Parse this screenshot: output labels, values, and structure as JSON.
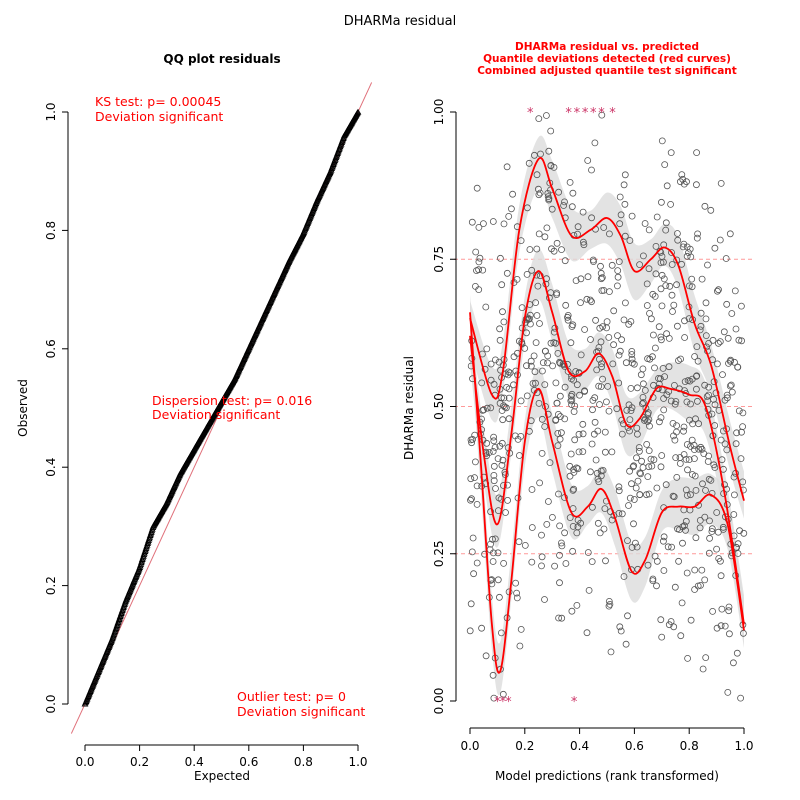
{
  "title": "DHARMa residual",
  "left_panel": {
    "title": "QQ plot residuals",
    "xlabel": "Expected",
    "ylabel": "Observed",
    "ks_test": "KS test: p= 0.00045",
    "ks_deviation": "Deviation  significant",
    "dispersion_test": "Dispersion test: p= 0.016",
    "dispersion_deviation": "Deviation  significant",
    "outlier_test": "Outlier test: p= 0",
    "outlier_deviation": "Deviation  significant"
  },
  "right_panel": {
    "title_line1": "DHARMa residual vs. predicted",
    "title_line2": "Quantile deviations detected (red curves)",
    "title_line3": "Combined adjusted quantile test significant",
    "xlabel": "Model predictions (rank transformed)",
    "ylabel": "DHARMa residual"
  },
  "colors": {
    "accent": "#ff0000",
    "points": "#555555",
    "band": "#dcdcdc",
    "refline": "#ff9999"
  },
  "chart_data": [
    {
      "type": "scatter",
      "title": "QQ plot residuals",
      "xlabel": "Expected",
      "ylabel": "Observed",
      "xlim": [
        0,
        1
      ],
      "ylim": [
        0,
        1
      ],
      "x_ticks": [
        "0.0",
        "0.2",
        "0.4",
        "0.6",
        "0.8",
        "1.0"
      ],
      "y_ticks": [
        "0.0",
        "0.2",
        "0.4",
        "0.6",
        "0.8",
        "1.0"
      ],
      "qq_curve": [
        {
          "x": 0.0,
          "y": 0.0
        },
        {
          "x": 0.05,
          "y": 0.055
        },
        {
          "x": 0.1,
          "y": 0.11
        },
        {
          "x": 0.15,
          "y": 0.175
        },
        {
          "x": 0.2,
          "y": 0.23
        },
        {
          "x": 0.25,
          "y": 0.3
        },
        {
          "x": 0.3,
          "y": 0.34
        },
        {
          "x": 0.35,
          "y": 0.39
        },
        {
          "x": 0.4,
          "y": 0.43
        },
        {
          "x": 0.45,
          "y": 0.47
        },
        {
          "x": 0.5,
          "y": 0.51
        },
        {
          "x": 0.55,
          "y": 0.55
        },
        {
          "x": 0.6,
          "y": 0.6
        },
        {
          "x": 0.65,
          "y": 0.65
        },
        {
          "x": 0.7,
          "y": 0.7
        },
        {
          "x": 0.75,
          "y": 0.75
        },
        {
          "x": 0.8,
          "y": 0.795
        },
        {
          "x": 0.85,
          "y": 0.85
        },
        {
          "x": 0.9,
          "y": 0.9
        },
        {
          "x": 0.95,
          "y": 0.96
        },
        {
          "x": 1.0,
          "y": 1.0
        }
      ],
      "reference_line": "y = x",
      "tests": [
        {
          "name": "KS test",
          "p": 0.00045
        },
        {
          "name": "Dispersion test",
          "p": 0.016
        },
        {
          "name": "Outlier test",
          "p": 0
        }
      ]
    },
    {
      "type": "scatter",
      "title": "DHARMa residual vs. predicted",
      "xlabel": "Model predictions (rank transformed)",
      "ylabel": "DHARMa residual",
      "xlim": [
        0,
        1
      ],
      "ylim": [
        0,
        1
      ],
      "x_ticks": [
        "0.0",
        "0.2",
        "0.4",
        "0.6",
        "0.8",
        "1.0"
      ],
      "y_ticks": [
        "0.00",
        "0.25",
        "0.50",
        "0.75",
        "1.00"
      ],
      "reference_lines": [
        0.25,
        0.5,
        0.75
      ],
      "quantile_curves": [
        {
          "quantile": 0.75,
          "points": [
            {
              "x": 0.0,
              "y": 0.65
            },
            {
              "x": 0.08,
              "y": 0.52
            },
            {
              "x": 0.12,
              "y": 0.56
            },
            {
              "x": 0.18,
              "y": 0.8
            },
            {
              "x": 0.25,
              "y": 0.92
            },
            {
              "x": 0.3,
              "y": 0.87
            },
            {
              "x": 0.37,
              "y": 0.79
            },
            {
              "x": 0.44,
              "y": 0.8
            },
            {
              "x": 0.5,
              "y": 0.82
            },
            {
              "x": 0.55,
              "y": 0.79
            },
            {
              "x": 0.6,
              "y": 0.73
            },
            {
              "x": 0.66,
              "y": 0.75
            },
            {
              "x": 0.71,
              "y": 0.77
            },
            {
              "x": 0.76,
              "y": 0.74
            },
            {
              "x": 0.82,
              "y": 0.64
            },
            {
              "x": 0.88,
              "y": 0.57
            },
            {
              "x": 0.95,
              "y": 0.43
            },
            {
              "x": 1.0,
              "y": 0.34
            }
          ]
        },
        {
          "quantile": 0.5,
          "points": [
            {
              "x": 0.0,
              "y": 0.62
            },
            {
              "x": 0.05,
              "y": 0.42
            },
            {
              "x": 0.1,
              "y": 0.3
            },
            {
              "x": 0.15,
              "y": 0.45
            },
            {
              "x": 0.2,
              "y": 0.65
            },
            {
              "x": 0.25,
              "y": 0.73
            },
            {
              "x": 0.3,
              "y": 0.66
            },
            {
              "x": 0.36,
              "y": 0.56
            },
            {
              "x": 0.42,
              "y": 0.56
            },
            {
              "x": 0.47,
              "y": 0.59
            },
            {
              "x": 0.52,
              "y": 0.55
            },
            {
              "x": 0.57,
              "y": 0.47
            },
            {
              "x": 0.62,
              "y": 0.48
            },
            {
              "x": 0.68,
              "y": 0.53
            },
            {
              "x": 0.73,
              "y": 0.53
            },
            {
              "x": 0.8,
              "y": 0.52
            },
            {
              "x": 0.86,
              "y": 0.5
            },
            {
              "x": 0.93,
              "y": 0.35
            },
            {
              "x": 1.0,
              "y": 0.13
            }
          ]
        },
        {
          "quantile": 0.25,
          "points": [
            {
              "x": 0.0,
              "y": 0.66
            },
            {
              "x": 0.04,
              "y": 0.4
            },
            {
              "x": 0.08,
              "y": 0.13
            },
            {
              "x": 0.11,
              "y": 0.05
            },
            {
              "x": 0.15,
              "y": 0.2
            },
            {
              "x": 0.2,
              "y": 0.44
            },
            {
              "x": 0.25,
              "y": 0.53
            },
            {
              "x": 0.3,
              "y": 0.44
            },
            {
              "x": 0.37,
              "y": 0.32
            },
            {
              "x": 0.43,
              "y": 0.33
            },
            {
              "x": 0.48,
              "y": 0.36
            },
            {
              "x": 0.53,
              "y": 0.31
            },
            {
              "x": 0.59,
              "y": 0.22
            },
            {
              "x": 0.64,
              "y": 0.24
            },
            {
              "x": 0.7,
              "y": 0.32
            },
            {
              "x": 0.76,
              "y": 0.33
            },
            {
              "x": 0.82,
              "y": 0.33
            },
            {
              "x": 0.88,
              "y": 0.35
            },
            {
              "x": 0.94,
              "y": 0.3
            },
            {
              "x": 1.0,
              "y": 0.12
            }
          ]
        }
      ],
      "outliers": [
        {
          "x": 0.1,
          "y": 0.0
        },
        {
          "x": 0.12,
          "y": 0.0
        },
        {
          "x": 0.14,
          "y": 0.0
        },
        {
          "x": 0.38,
          "y": 0.0
        },
        {
          "x": 0.22,
          "y": 1.0
        },
        {
          "x": 0.36,
          "y": 1.0
        },
        {
          "x": 0.39,
          "y": 1.0
        },
        {
          "x": 0.42,
          "y": 1.0
        },
        {
          "x": 0.45,
          "y": 1.0
        },
        {
          "x": 0.48,
          "y": 1.0
        },
        {
          "x": 0.52,
          "y": 1.0
        }
      ]
    }
  ]
}
